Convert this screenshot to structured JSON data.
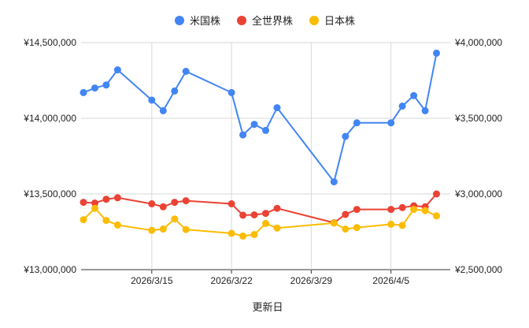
{
  "chart_data": {
    "type": "line",
    "title": "",
    "xlabel": "更新日",
    "ylabel": "",
    "x_ticks": [
      "2026/3/15",
      "2026/3/22",
      "2026/3/29",
      "2026/4/5"
    ],
    "x_tick_dates": [
      "2026-03-15",
      "2026-03-22",
      "2026-03-29",
      "2026-04-05"
    ],
    "xlim": [
      "2026-03-09",
      "2026-04-10"
    ],
    "ylim_left": [
      13000000,
      14500000
    ],
    "ylim_right": [
      2500000,
      4000000
    ],
    "y_ticks_left": [
      "¥13,000,000",
      "¥13,500,000",
      "¥14,000,000",
      "¥14,500,000"
    ],
    "y_tick_values_left": [
      13000000,
      13500000,
      14000000,
      14500000
    ],
    "y_ticks_right": [
      "¥2,500,000",
      "¥3,000,000",
      "¥3,500,000",
      "¥4,000,000"
    ],
    "y_tick_values_right": [
      2500000,
      3000000,
      3500000,
      4000000
    ],
    "grid": true,
    "legend_position": "top",
    "series": [
      {
        "name": "米国株",
        "color": "#4285f4",
        "axis": "left",
        "points": [
          [
            "2026-03-09",
            14170000
          ],
          [
            "2026-03-10",
            14200000
          ],
          [
            "2026-03-11",
            14220000
          ],
          [
            "2026-03-12",
            14320000
          ],
          [
            "2026-03-15",
            14120000
          ],
          [
            "2026-03-16",
            14050000
          ],
          [
            "2026-03-17",
            14180000
          ],
          [
            "2026-03-18",
            14310000
          ],
          [
            "2026-03-22",
            14170000
          ],
          [
            "2026-03-23",
            13890000
          ],
          [
            "2026-03-24",
            13960000
          ],
          [
            "2026-03-25",
            13920000
          ],
          [
            "2026-03-26",
            14070000
          ],
          [
            "2026-03-31",
            13580000
          ],
          [
            "2026-04-01",
            13880000
          ],
          [
            "2026-04-02",
            13970000
          ],
          [
            "2026-04-05",
            13970000
          ],
          [
            "2026-04-06",
            14080000
          ],
          [
            "2026-04-07",
            14150000
          ],
          [
            "2026-04-08",
            14050000
          ],
          [
            "2026-04-09",
            14430000
          ]
        ]
      },
      {
        "name": "全世界株",
        "color": "#ea4335",
        "axis": "right",
        "points": [
          [
            "2026-03-09",
            2945000
          ],
          [
            "2026-03-10",
            2940000
          ],
          [
            "2026-03-11",
            2965000
          ],
          [
            "2026-03-12",
            2975000
          ],
          [
            "2026-03-15",
            2935000
          ],
          [
            "2026-03-16",
            2915000
          ],
          [
            "2026-03-17",
            2945000
          ],
          [
            "2026-03-18",
            2955000
          ],
          [
            "2026-03-22",
            2935000
          ],
          [
            "2026-03-23",
            2860000
          ],
          [
            "2026-03-24",
            2862000
          ],
          [
            "2026-03-25",
            2872000
          ],
          [
            "2026-03-26",
            2905000
          ],
          [
            "2026-03-31",
            2810000
          ],
          [
            "2026-04-01",
            2865000
          ],
          [
            "2026-04-02",
            2898000
          ],
          [
            "2026-04-05",
            2898000
          ],
          [
            "2026-04-06",
            2910000
          ],
          [
            "2026-04-07",
            2922000
          ],
          [
            "2026-04-08",
            2915000
          ],
          [
            "2026-04-09",
            3000000
          ]
        ]
      },
      {
        "name": "日本株",
        "color": "#fbbc04",
        "axis": "right",
        "points": [
          [
            "2026-03-09",
            2830000
          ],
          [
            "2026-03-10",
            2905000
          ],
          [
            "2026-03-11",
            2825000
          ],
          [
            "2026-03-12",
            2795000
          ],
          [
            "2026-03-15",
            2760000
          ],
          [
            "2026-03-16",
            2768000
          ],
          [
            "2026-03-17",
            2835000
          ],
          [
            "2026-03-18",
            2765000
          ],
          [
            "2026-03-22",
            2740000
          ],
          [
            "2026-03-23",
            2722000
          ],
          [
            "2026-03-24",
            2732000
          ],
          [
            "2026-03-25",
            2805000
          ],
          [
            "2026-03-26",
            2775000
          ],
          [
            "2026-03-31",
            2808000
          ],
          [
            "2026-04-01",
            2768000
          ],
          [
            "2026-04-02",
            2778000
          ],
          [
            "2026-04-05",
            2800000
          ],
          [
            "2026-04-06",
            2792000
          ],
          [
            "2026-04-07",
            2898000
          ],
          [
            "2026-04-08",
            2890000
          ],
          [
            "2026-04-09",
            2855000
          ]
        ]
      }
    ]
  }
}
